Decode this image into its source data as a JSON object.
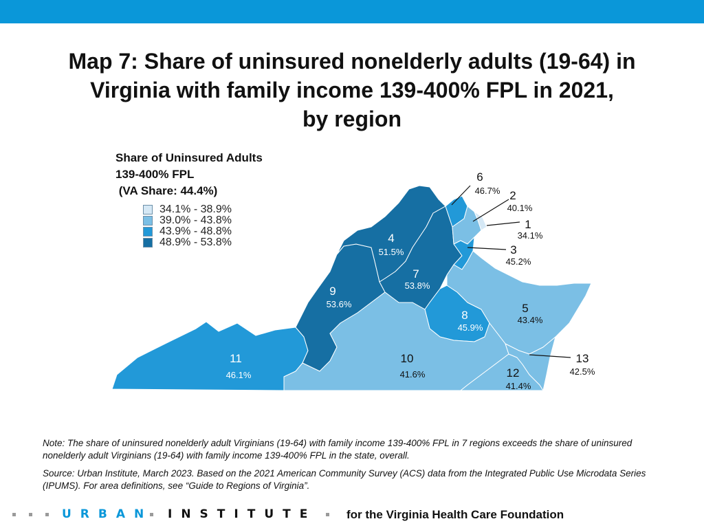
{
  "title": {
    "line1": "Map 7: Share of uninsured nonelderly adults (19-64) in",
    "line2": "Virginia with family income 139-400% FPL in 2021,",
    "line3": "by region"
  },
  "legend": {
    "heading_line1": "Share of Uninsured Adults",
    "heading_line2": "139-400% FPL",
    "heading_line3": " (VA Share: 44.4%)",
    "items": [
      {
        "label": "34.1% - 38.9%",
        "color": "#d5e8f5"
      },
      {
        "label": "39.0% - 43.8%",
        "color": "#7bbfe5"
      },
      {
        "label": "43.9% - 48.8%",
        "color": "#2299d8"
      },
      {
        "label": "48.9% - 53.8%",
        "color": "#166fa3"
      }
    ]
  },
  "regions": [
    {
      "id": "1",
      "value": "34.1%",
      "color": "#d5e8f5"
    },
    {
      "id": "2",
      "value": "40.1%",
      "color": "#7bbfe5"
    },
    {
      "id": "3",
      "value": "45.2%",
      "color": "#2299d8"
    },
    {
      "id": "4",
      "value": "51.5%",
      "color": "#166fa3"
    },
    {
      "id": "5",
      "value": "43.4%",
      "color": "#7bbfe5"
    },
    {
      "id": "6",
      "value": "46.7%",
      "color": "#2299d8"
    },
    {
      "id": "7",
      "value": "53.8%",
      "color": "#166fa3"
    },
    {
      "id": "8",
      "value": "45.9%",
      "color": "#2299d8"
    },
    {
      "id": "9",
      "value": "53.6%",
      "color": "#166fa3"
    },
    {
      "id": "10",
      "value": "41.6%",
      "color": "#7bbfe5"
    },
    {
      "id": "11",
      "value": "46.1%",
      "color": "#2299d8"
    },
    {
      "id": "12",
      "value": "41.4%",
      "color": "#7bbfe5"
    },
    {
      "id": "13",
      "value": "42.5%",
      "color": "#7bbfe5"
    }
  ],
  "notes": {
    "note": "Note: The share of uninsured nonelderly adult Virginians (19-64) with family income 139-400% FPL in 7 regions exceeds the share of uninsured nonelderly adult Virginians (19-64) with family income 139-400% FPL in the state, overall.",
    "source": "Source: Urban Institute, March 2023. Based on the 2021 American Community Survey (ACS) data from the Integrated Public Use Microdata Series (IPUMS). For area definitions, see “Guide to Regions of Virginia”."
  },
  "footer": {
    "brand_first": "URBAN",
    "brand_second": "INSTITUTE",
    "tagline": "for the Virginia Health Care Foundation"
  },
  "colors": {
    "top_bar": "#0a97d9",
    "brand_blue": "#0a97d9"
  }
}
